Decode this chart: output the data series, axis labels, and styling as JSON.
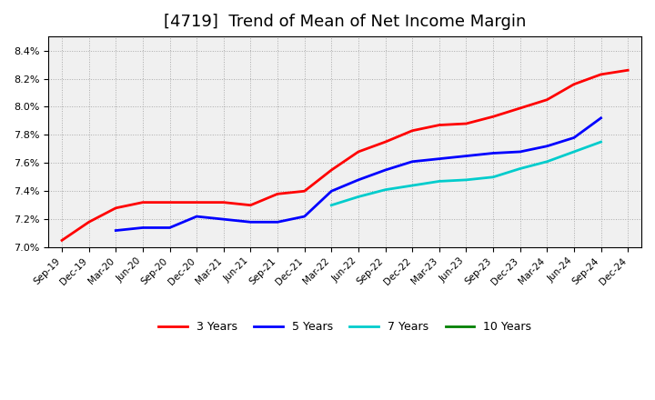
{
  "title": "[4719]  Trend of Mean of Net Income Margin",
  "x_labels": [
    "Sep-19",
    "Dec-19",
    "Mar-20",
    "Jun-20",
    "Sep-20",
    "Dec-20",
    "Mar-21",
    "Jun-21",
    "Sep-21",
    "Dec-21",
    "Mar-22",
    "Jun-22",
    "Sep-22",
    "Dec-22",
    "Mar-23",
    "Jun-23",
    "Sep-23",
    "Dec-23",
    "Mar-24",
    "Jun-24",
    "Sep-24",
    "Dec-24"
  ],
  "series": {
    "3 Years": {
      "color": "#FF0000",
      "data": [
        7.05,
        7.18,
        7.28,
        7.32,
        7.32,
        7.32,
        7.32,
        7.3,
        7.38,
        7.4,
        7.55,
        7.68,
        7.75,
        7.83,
        7.87,
        7.88,
        7.93,
        7.99,
        8.05,
        8.16,
        8.23,
        8.26
      ]
    },
    "5 Years": {
      "color": "#0000FF",
      "data": [
        null,
        null,
        7.12,
        7.14,
        7.14,
        7.22,
        7.2,
        7.18,
        7.18,
        7.22,
        7.4,
        7.48,
        7.55,
        7.61,
        7.63,
        7.65,
        7.67,
        7.68,
        7.72,
        7.78,
        7.92,
        null
      ]
    },
    "7 Years": {
      "color": "#00CCCC",
      "data": [
        null,
        null,
        null,
        null,
        null,
        null,
        null,
        null,
        null,
        null,
        7.3,
        7.36,
        7.41,
        7.44,
        7.47,
        7.48,
        7.5,
        7.56,
        7.61,
        7.68,
        7.75,
        null
      ]
    },
    "10 Years": {
      "color": "#008000",
      "data": [
        null,
        null,
        null,
        null,
        null,
        null,
        null,
        null,
        null,
        null,
        null,
        null,
        null,
        null,
        null,
        null,
        null,
        null,
        null,
        null,
        null,
        null
      ]
    }
  },
  "ylim": [
    7.0,
    8.5
  ],
  "yticks": [
    7.0,
    7.2,
    7.4,
    7.6,
    7.8,
    8.0,
    8.2,
    8.4
  ],
  "background_color": "#FFFFFF",
  "plot_bg_color": "#F0F0F0",
  "grid_color": "#AAAAAA",
  "title_fontsize": 13,
  "legend_labels": [
    "3 Years",
    "5 Years",
    "7 Years",
    "10 Years"
  ],
  "legend_colors": [
    "#FF0000",
    "#0000FF",
    "#00CCCC",
    "#008000"
  ]
}
